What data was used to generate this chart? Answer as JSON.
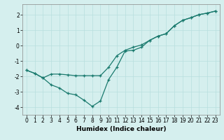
{
  "xlabel": "Humidex (Indice chaleur)",
  "ylabel": "",
  "background_color": "#d5efee",
  "line_color": "#1a7a6e",
  "xlim": [
    -0.5,
    23.5
  ],
  "ylim": [
    -4.5,
    2.7
  ],
  "x": [
    0,
    1,
    2,
    3,
    4,
    5,
    6,
    7,
    8,
    9,
    10,
    11,
    12,
    13,
    14,
    15,
    16,
    17,
    18,
    19,
    20,
    21,
    22,
    23
  ],
  "line1_y": [
    -1.6,
    -1.8,
    -2.1,
    -2.55,
    -2.75,
    -3.1,
    -3.2,
    -3.55,
    -3.95,
    -3.6,
    -2.2,
    -1.4,
    -0.35,
    -0.3,
    -0.1,
    0.35,
    0.62,
    0.78,
    1.3,
    1.65,
    1.82,
    2.02,
    2.12,
    2.25
  ],
  "line2_y": [
    -1.6,
    -1.8,
    -2.1,
    -1.85,
    -1.85,
    -1.9,
    -1.95,
    -1.95,
    -1.95,
    -1.95,
    -1.4,
    -0.65,
    -0.3,
    -0.1,
    0.05,
    0.35,
    0.62,
    0.78,
    1.3,
    1.65,
    1.82,
    2.02,
    2.12,
    2.25
  ],
  "yticks": [
    -4,
    -3,
    -2,
    -1,
    0,
    1,
    2
  ],
  "xticks": [
    0,
    1,
    2,
    3,
    4,
    5,
    6,
    7,
    8,
    9,
    10,
    11,
    12,
    13,
    14,
    15,
    16,
    17,
    18,
    19,
    20,
    21,
    22,
    23
  ],
  "grid_color": "#b8dede",
  "axis_fontsize": 6.5,
  "tick_fontsize": 5.5
}
